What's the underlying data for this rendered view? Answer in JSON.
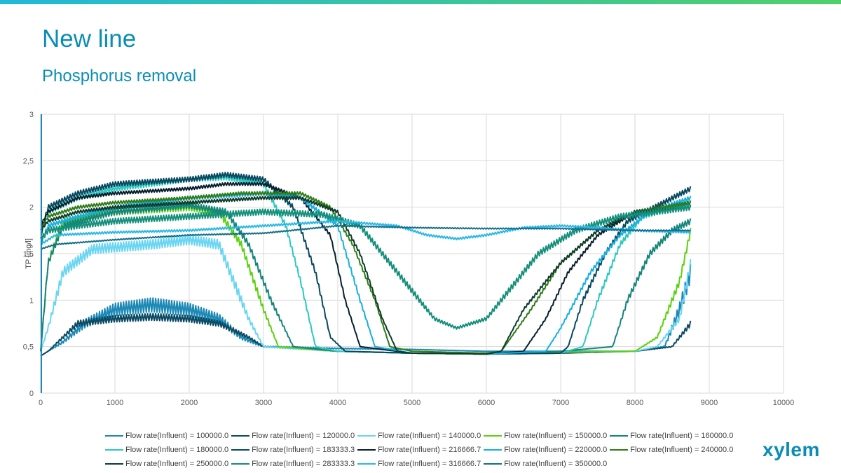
{
  "slide": {
    "title": "New line",
    "subtitle": "Phosphorus removal",
    "logo": "xylem",
    "bar_gradient": [
      "#22b8d8",
      "#4fd06a"
    ]
  },
  "chart_data": {
    "type": "line",
    "title": "",
    "xlabel": "",
    "ylabel": "TP [mg/l]",
    "xlim": [
      0,
      10000
    ],
    "ylim": [
      0,
      3
    ],
    "x_ticks": [
      0,
      1000,
      2000,
      3000,
      4000,
      5000,
      6000,
      7000,
      8000,
      9000,
      10000
    ],
    "y_ticks": [
      0,
      0.5,
      1,
      1.5,
      2,
      2.5,
      3
    ],
    "y_tick_labels": [
      "0",
      "0,5",
      "1",
      "1,5",
      "2",
      "2,5",
      "3"
    ],
    "grid": true,
    "legend_position": "bottom",
    "series": [
      {
        "name": "Flow rate(Influent) = 100000.0",
        "color": "#1b88b5",
        "noise": 0.18,
        "points": [
          [
            0,
            0.4
          ],
          [
            100,
            0.45
          ],
          [
            300,
            0.55
          ],
          [
            600,
            0.75
          ],
          [
            1000,
            0.9
          ],
          [
            1500,
            0.95
          ],
          [
            2000,
            0.9
          ],
          [
            2400,
            0.8
          ],
          [
            2700,
            0.6
          ],
          [
            3000,
            0.5
          ],
          [
            4000,
            0.48
          ],
          [
            5000,
            0.47
          ],
          [
            6000,
            0.45
          ],
          [
            7000,
            0.45
          ],
          [
            8000,
            0.45
          ],
          [
            8400,
            0.5
          ],
          [
            8600,
            0.9
          ],
          [
            8750,
            1.3
          ]
        ]
      },
      {
        "name": "Flow rate(Influent) = 120000.0",
        "color": "#0b4a63",
        "noise": 0.12,
        "points": [
          [
            0,
            0.4
          ],
          [
            100,
            0.45
          ],
          [
            300,
            0.6
          ],
          [
            500,
            0.75
          ],
          [
            1000,
            0.8
          ],
          [
            1500,
            0.82
          ],
          [
            2000,
            0.8
          ],
          [
            2400,
            0.75
          ],
          [
            2800,
            0.6
          ],
          [
            3000,
            0.5
          ],
          [
            4000,
            0.45
          ],
          [
            5000,
            0.43
          ],
          [
            6000,
            0.42
          ],
          [
            7000,
            0.43
          ],
          [
            8000,
            0.45
          ],
          [
            8500,
            0.5
          ],
          [
            8750,
            0.75
          ]
        ]
      },
      {
        "name": "Flow rate(Influent) = 140000.0",
        "color": "#6ad5f2",
        "noise": 0.1,
        "points": [
          [
            0,
            0.45
          ],
          [
            100,
            0.7
          ],
          [
            300,
            1.3
          ],
          [
            700,
            1.55
          ],
          [
            1500,
            1.6
          ],
          [
            2000,
            1.65
          ],
          [
            2400,
            1.6
          ],
          [
            2600,
            1.2
          ],
          [
            2800,
            0.8
          ],
          [
            3000,
            0.5
          ],
          [
            4000,
            0.45
          ],
          [
            5000,
            0.43
          ],
          [
            6000,
            0.43
          ],
          [
            7000,
            0.44
          ],
          [
            8000,
            0.45
          ],
          [
            8300,
            0.5
          ],
          [
            8600,
            0.8
          ],
          [
            8750,
            1.4
          ]
        ]
      },
      {
        "name": "Flow rate(Influent) = 150000.0",
        "color": "#5cd10f",
        "noise": 0.07,
        "points": [
          [
            0,
            0.45
          ],
          [
            100,
            1.4
          ],
          [
            300,
            1.85
          ],
          [
            1000,
            1.95
          ],
          [
            2000,
            2.0
          ],
          [
            2400,
            1.95
          ],
          [
            2700,
            1.6
          ],
          [
            3000,
            0.9
          ],
          [
            3200,
            0.5
          ],
          [
            4000,
            0.45
          ],
          [
            5000,
            0.43
          ],
          [
            6000,
            0.43
          ],
          [
            7000,
            0.44
          ],
          [
            8000,
            0.45
          ],
          [
            8300,
            0.6
          ],
          [
            8600,
            1.2
          ],
          [
            8750,
            1.75
          ]
        ]
      },
      {
        "name": "Flow rate(Influent) = 160000.0",
        "color": "#13857a",
        "noise": 0.06,
        "points": [
          [
            0,
            0.45
          ],
          [
            100,
            1.4
          ],
          [
            300,
            1.8
          ],
          [
            1000,
            1.95
          ],
          [
            2000,
            2.02
          ],
          [
            2500,
            1.95
          ],
          [
            2800,
            1.6
          ],
          [
            3100,
            1.0
          ],
          [
            3400,
            0.5
          ],
          [
            4000,
            0.45
          ],
          [
            5000,
            0.43
          ],
          [
            6000,
            0.43
          ],
          [
            7000,
            0.45
          ],
          [
            7700,
            0.5
          ],
          [
            7900,
            1.0
          ],
          [
            8200,
            1.5
          ],
          [
            8500,
            1.75
          ],
          [
            8750,
            1.85
          ]
        ]
      },
      {
        "name": "Flow rate(Influent) = 180000.0",
        "color": "#2cc7c0",
        "noise": 0.05,
        "points": [
          [
            0,
            1.7
          ],
          [
            100,
            1.95
          ],
          [
            500,
            2.1
          ],
          [
            1000,
            2.2
          ],
          [
            2000,
            2.3
          ],
          [
            2500,
            2.32
          ],
          [
            3000,
            2.25
          ],
          [
            3300,
            1.8
          ],
          [
            3500,
            1.2
          ],
          [
            3700,
            0.5
          ],
          [
            4000,
            0.45
          ],
          [
            5000,
            0.43
          ],
          [
            6000,
            0.42
          ],
          [
            7000,
            0.43
          ],
          [
            7300,
            0.5
          ],
          [
            7500,
            1.0
          ],
          [
            7800,
            1.6
          ],
          [
            8100,
            1.9
          ],
          [
            8750,
            2.05
          ]
        ]
      },
      {
        "name": "Flow rate(Influent) = 183333.3",
        "color": "#08485e",
        "noise": 0.05,
        "points": [
          [
            0,
            1.7
          ],
          [
            100,
            2.0
          ],
          [
            500,
            2.15
          ],
          [
            1000,
            2.25
          ],
          [
            2000,
            2.3
          ],
          [
            2500,
            2.35
          ],
          [
            3000,
            2.3
          ],
          [
            3400,
            2.0
          ],
          [
            3700,
            1.3
          ],
          [
            3900,
            0.6
          ],
          [
            4100,
            0.45
          ],
          [
            5000,
            0.43
          ],
          [
            6000,
            0.42
          ],
          [
            7000,
            0.43
          ],
          [
            7100,
            0.5
          ],
          [
            7300,
            1.0
          ],
          [
            7600,
            1.5
          ],
          [
            7900,
            1.85
          ],
          [
            8750,
            2.2
          ]
        ]
      },
      {
        "name": "Flow rate(Influent) = 216666.7",
        "color": "#061e2c",
        "noise": 0.03,
        "points": [
          [
            0,
            1.8
          ],
          [
            100,
            1.95
          ],
          [
            500,
            2.1
          ],
          [
            1000,
            2.15
          ],
          [
            2000,
            2.2
          ],
          [
            2500,
            2.25
          ],
          [
            3000,
            2.25
          ],
          [
            3500,
            2.1
          ],
          [
            3900,
            1.7
          ],
          [
            4100,
            1.0
          ],
          [
            4300,
            0.5
          ],
          [
            5000,
            0.43
          ],
          [
            6000,
            0.42
          ],
          [
            6500,
            0.45
          ],
          [
            6800,
            0.8
          ],
          [
            7100,
            1.3
          ],
          [
            7500,
            1.7
          ],
          [
            8000,
            1.95
          ],
          [
            8750,
            2.05
          ]
        ]
      },
      {
        "name": "Flow rate(Influent) = 220000.0",
        "color": "#18aee0",
        "noise": 0.04,
        "points": [
          [
            0,
            1.6
          ],
          [
            100,
            1.8
          ],
          [
            500,
            1.9
          ],
          [
            1000,
            2.0
          ],
          [
            2000,
            2.1
          ],
          [
            3000,
            2.15
          ],
          [
            3500,
            2.1
          ],
          [
            4000,
            1.8
          ],
          [
            4300,
            1.0
          ],
          [
            4500,
            0.5
          ],
          [
            5000,
            0.43
          ],
          [
            6000,
            0.42
          ],
          [
            6800,
            0.45
          ],
          [
            7000,
            0.7
          ],
          [
            7400,
            1.3
          ],
          [
            7800,
            1.7
          ],
          [
            8200,
            1.95
          ],
          [
            8750,
            2.1
          ]
        ]
      },
      {
        "name": "Flow rate(Influent) = 240000.0",
        "color": "#2e7c16",
        "noise": 0.03,
        "points": [
          [
            0,
            1.75
          ],
          [
            100,
            1.9
          ],
          [
            500,
            2.0
          ],
          [
            1000,
            2.05
          ],
          [
            2000,
            2.1
          ],
          [
            2700,
            2.15
          ],
          [
            3500,
            2.15
          ],
          [
            3900,
            2.0
          ],
          [
            4200,
            1.6
          ],
          [
            4500,
            1.0
          ],
          [
            4700,
            0.5
          ],
          [
            5000,
            0.45
          ],
          [
            6000,
            0.43
          ],
          [
            6200,
            0.45
          ],
          [
            6600,
            0.9
          ],
          [
            7000,
            1.4
          ],
          [
            7500,
            1.75
          ],
          [
            8000,
            1.95
          ],
          [
            8750,
            2.05
          ]
        ]
      },
      {
        "name": "Flow rate(Influent) = 250000.0",
        "color": "#0f3b2c",
        "noise": 0.03,
        "points": [
          [
            0,
            1.75
          ],
          [
            100,
            1.85
          ],
          [
            500,
            1.95
          ],
          [
            1000,
            2.0
          ],
          [
            2000,
            2.05
          ],
          [
            3000,
            2.1
          ],
          [
            3500,
            2.1
          ],
          [
            4000,
            1.95
          ],
          [
            4300,
            1.5
          ],
          [
            4600,
            0.8
          ],
          [
            4800,
            0.45
          ],
          [
            5000,
            0.43
          ],
          [
            6000,
            0.42
          ],
          [
            6200,
            0.45
          ],
          [
            6500,
            0.9
          ],
          [
            7000,
            1.4
          ],
          [
            7500,
            1.75
          ],
          [
            8000,
            1.95
          ],
          [
            8750,
            2.0
          ]
        ]
      },
      {
        "name": "Flow rate(Influent) = 283333.3",
        "color": "#138f7a",
        "noise": 0.06,
        "points": [
          [
            0,
            1.65
          ],
          [
            100,
            1.75
          ],
          [
            500,
            1.8
          ],
          [
            1000,
            1.85
          ],
          [
            2000,
            1.9
          ],
          [
            3000,
            1.95
          ],
          [
            3800,
            1.92
          ],
          [
            4300,
            1.8
          ],
          [
            4600,
            1.5
          ],
          [
            5000,
            1.1
          ],
          [
            5300,
            0.8
          ],
          [
            5600,
            0.7
          ],
          [
            6000,
            0.8
          ],
          [
            6300,
            1.1
          ],
          [
            6700,
            1.5
          ],
          [
            7200,
            1.75
          ],
          [
            7800,
            1.9
          ],
          [
            8750,
            2.0
          ]
        ]
      },
      {
        "name": "Flow rate(Influent) = 316666.7",
        "color": "#2ab8e6",
        "noise": 0.02,
        "points": [
          [
            0,
            1.6
          ],
          [
            200,
            1.7
          ],
          [
            1000,
            1.73
          ],
          [
            2000,
            1.75
          ],
          [
            3000,
            1.8
          ],
          [
            4000,
            1.85
          ],
          [
            4800,
            1.8
          ],
          [
            5200,
            1.7
          ],
          [
            5600,
            1.66
          ],
          [
            6000,
            1.7
          ],
          [
            6500,
            1.78
          ],
          [
            7000,
            1.8
          ],
          [
            7500,
            1.78
          ],
          [
            8000,
            1.75
          ],
          [
            8750,
            1.73
          ]
        ]
      },
      {
        "name": "Flow rate(Influent) = 350000.0",
        "color": "#146e8a",
        "noise": 0.01,
        "points": [
          [
            0,
            1.55
          ],
          [
            200,
            1.6
          ],
          [
            1000,
            1.65
          ],
          [
            2000,
            1.7
          ],
          [
            3000,
            1.72
          ],
          [
            4000,
            1.8
          ],
          [
            5000,
            1.78
          ],
          [
            6000,
            1.77
          ],
          [
            7000,
            1.77
          ],
          [
            8000,
            1.75
          ],
          [
            8750,
            1.75
          ]
        ]
      }
    ]
  }
}
